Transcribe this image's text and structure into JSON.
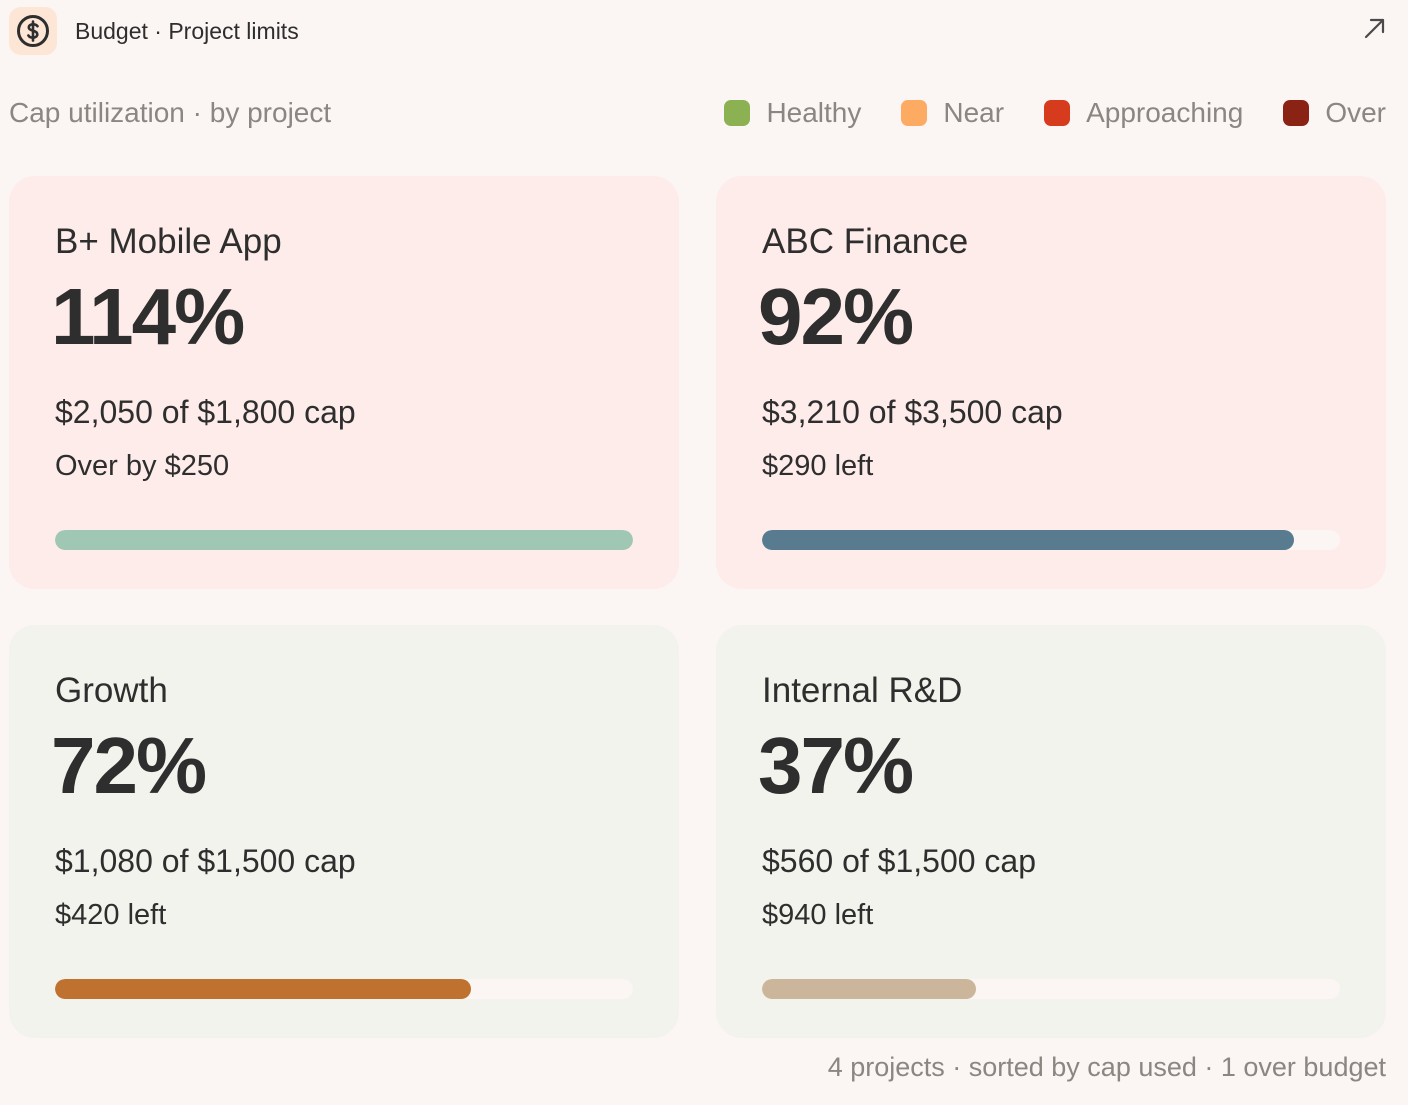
{
  "header": {
    "title": "Budget · Project limits",
    "logo_icon": "dollar-circle-icon",
    "expand_icon": "arrow-up-right-icon"
  },
  "section": {
    "title": "Cap utilization · by project"
  },
  "legend": [
    {
      "label": "Healthy",
      "color": "#8bb153"
    },
    {
      "label": "Near",
      "color": "#fdaa63"
    },
    {
      "label": "Approaching",
      "color": "#d63b1e"
    },
    {
      "label": "Over",
      "color": "#8b2314"
    }
  ],
  "projects": [
    {
      "name": "B+ Mobile App",
      "percent_label": "114%",
      "amount": "$2,050 of $1,800 cap",
      "remaining": "Over by $250",
      "utilization": 1.14,
      "status": "over",
      "bar_color": "#a0c7b3"
    },
    {
      "name": "ABC Finance",
      "percent_label": "92%",
      "amount": "$3,210 of $3,500 cap",
      "remaining": "$290 left",
      "utilization": 0.92,
      "status": "approaching",
      "bar_color": "#597b90"
    },
    {
      "name": "Growth",
      "percent_label": "72%",
      "amount": "$1,080 of $1,500 cap",
      "remaining": "$420 left",
      "utilization": 0.72,
      "status": "near",
      "bar_color": "#bf7230"
    },
    {
      "name": "Internal R&D",
      "percent_label": "37%",
      "amount": "$560 of $1,500 cap",
      "remaining": "$940 left",
      "utilization": 0.37,
      "status": "healthy",
      "bar_color": "#cbb59b"
    }
  ],
  "footer": {
    "text": "4 projects · sorted by cap used · 1 over budget"
  }
}
